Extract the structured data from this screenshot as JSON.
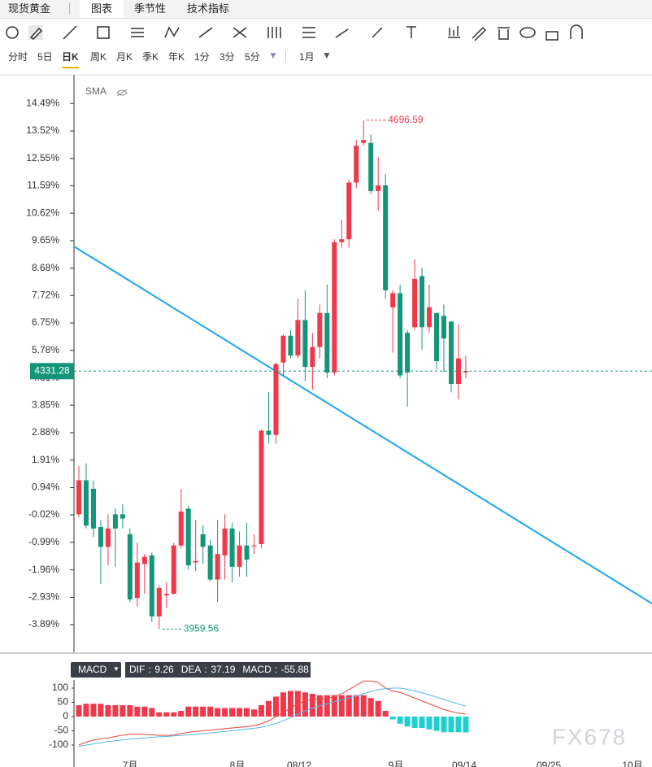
{
  "header": {
    "tabs": [
      "现货黄金",
      "图表",
      "季节性",
      "技术指标"
    ]
  },
  "periods": [
    "分时",
    "5日",
    "日K",
    "周K",
    "月K",
    "季K",
    "年K",
    "1分",
    "3分",
    "5分",
    "1月"
  ],
  "chart_data": {
    "type": "candlestick",
    "indicator": "SMA",
    "up_color": "#f0384a",
    "down_color": "#149579",
    "open": [
      0.0,
      1.2,
      0.9,
      -0.45,
      -1.15,
      0.0,
      0.0,
      -0.7,
      -2.95,
      -1.75,
      -1.45,
      -3.6,
      -2.85,
      -2.8,
      -1.1,
      0.2,
      -1.7,
      -0.7,
      -1.1,
      -2.3,
      -1.45,
      -0.5,
      -1.85,
      -1.1,
      -1.1,
      -1.05,
      2.95,
      2.8,
      5.35,
      6.3,
      5.6,
      6.85,
      5.2,
      5.9,
      7.1,
      5.0,
      9.6,
      9.7,
      11.7,
      13.1,
      13.1,
      11.4,
      11.6,
      7.3,
      7.8,
      6.4,
      6.6,
      8.4,
      6.6,
      7.1,
      7.0,
      6.8,
      4.6,
      5.0
    ],
    "close": [
      1.2,
      -0.4,
      -0.5,
      -1.15,
      -0.5,
      -0.5,
      -0.15,
      -3.0,
      -1.7,
      -1.5,
      -3.6,
      -2.6,
      -2.8,
      -1.1,
      0.1,
      -1.8,
      -1.65,
      -1.15,
      -2.3,
      -1.4,
      -0.5,
      -1.85,
      -1.1,
      -1.6,
      -1.1,
      2.95,
      2.8,
      5.3,
      6.3,
      5.6,
      6.85,
      5.2,
      5.9,
      7.1,
      5.0,
      9.6,
      9.7,
      11.7,
      13.0,
      13.2,
      11.4,
      11.6,
      7.9,
      7.8,
      4.9,
      5.0,
      8.3,
      6.6,
      7.3,
      5.4,
      6.2,
      4.6,
      5.5,
      5.05
    ],
    "high": [
      1.7,
      1.8,
      1.2,
      -0.2,
      0.0,
      0.2,
      0.35,
      -0.5,
      -1.0,
      -1.4,
      -1.35,
      -2.5,
      -2.4,
      -1.0,
      0.9,
      0.3,
      -0.2,
      -0.4,
      -0.9,
      -0.2,
      0.0,
      -0.3,
      -0.6,
      -0.3,
      -0.7,
      3.0,
      4.3,
      5.35,
      6.35,
      6.5,
      7.6,
      7.9,
      6.4,
      7.4,
      8.1,
      9.7,
      10.4,
      11.8,
      13.2,
      13.9,
      13.4,
      12.6,
      12.0,
      7.9,
      8.1,
      6.5,
      9.0,
      8.7,
      8.1,
      7.1,
      7.4,
      6.8,
      6.7,
      5.6
    ],
    "low": [
      -0.1,
      -0.5,
      -0.8,
      -2.45,
      -1.8,
      -1.85,
      -0.5,
      -3.1,
      -3.25,
      -2.8,
      -3.8,
      -4.05,
      -3.3,
      -2.85,
      -1.2,
      -1.95,
      -2.0,
      -1.75,
      -2.35,
      -3.1,
      -2.3,
      -2.4,
      -2.2,
      -2.2,
      -1.4,
      -1.2,
      2.5,
      2.5,
      4.85,
      5.5,
      5.5,
      4.7,
      4.4,
      5.5,
      4.8,
      4.9,
      9.4,
      9.4,
      11.5,
      13.0,
      11.3,
      10.7,
      7.6,
      5.7,
      4.8,
      3.8,
      6.5,
      5.8,
      6.4,
      5.1,
      5.0,
      4.3,
      4.05,
      4.8
    ],
    "ylim": [
      -4.81,
      15.5
    ],
    "yticks": [
      {
        "value": 14.49,
        "label": "14.49%"
      },
      {
        "value": 13.52,
        "label": "13.52%"
      },
      {
        "value": 12.55,
        "label": "12.55%"
      },
      {
        "value": 11.59,
        "label": "11.59%"
      },
      {
        "value": 10.62,
        "label": "10.62%"
      },
      {
        "value": 9.65,
        "label": "9.65%"
      },
      {
        "value": 8.68,
        "label": "8.68%"
      },
      {
        "value": 7.72,
        "label": "7.72%"
      },
      {
        "value": 6.75,
        "label": "6.75%"
      },
      {
        "value": 5.78,
        "label": "5.78%"
      },
      {
        "value": 4.81,
        "label": "4.81%"
      },
      {
        "value": 3.85,
        "label": "3.85%"
      },
      {
        "value": 2.88,
        "label": "2.88%"
      },
      {
        "value": 1.91,
        "label": "1.91%"
      },
      {
        "value": 0.94,
        "label": "0.94%"
      },
      {
        "value": -0.02,
        "label": "-0.02%"
      },
      {
        "value": -0.99,
        "label": "-0.99%"
      },
      {
        "value": -1.96,
        "label": "-1.96%"
      },
      {
        "value": -2.93,
        "label": "-2.93%"
      },
      {
        "value": -3.89,
        "label": "-3.89%"
      }
    ],
    "high_price": 4696.59,
    "low_price": 3959.56,
    "last_price": 4331.28,
    "x_labels": [
      "7月",
      "8月",
      "08/12",
      "9月",
      "09/14",
      "09/25",
      "10月"
    ],
    "watermark": "FX678"
  },
  "macd_chart": {
    "type": "macd",
    "name": "MACD",
    "series": [
      {
        "name": "DIF",
        "color": "#e8453c",
        "values": [
          -100,
          -90,
          -82,
          -78,
          -75,
          -70,
          -65,
          -62,
          -62,
          -63,
          -64,
          -66,
          -66,
          -65,
          -60,
          -55,
          -52,
          -50,
          -48,
          -45,
          -42,
          -40,
          -38,
          -35,
          -32,
          -25,
          -15,
          0,
          15,
          30,
          45,
          55,
          60,
          62,
          65,
          70,
          80,
          95,
          110,
          125,
          125,
          120,
          100,
          90,
          85,
          75,
          65,
          55,
          45,
          35,
          25,
          18,
          12,
          9.26
        ]
      },
      {
        "name": "DEA",
        "color": "#4fb8e6",
        "values": [
          -105,
          -100,
          -96,
          -92,
          -88,
          -85,
          -82,
          -79,
          -77,
          -75,
          -73,
          -71,
          -70,
          -68,
          -66,
          -64,
          -62,
          -60,
          -58,
          -55,
          -52,
          -50,
          -47,
          -44,
          -41,
          -38,
          -32,
          -24,
          -14,
          -4,
          8,
          20,
          30,
          38,
          45,
          52,
          58,
          65,
          72,
          80,
          88,
          95,
          98,
          100,
          100,
          96,
          90,
          84,
          76,
          68,
          60,
          52,
          44,
          37.19
        ]
      },
      {
        "name": "MACD",
        "color": "#f0384a",
        "neg_color": "#1ecfcf",
        "values": [
          40,
          45,
          45,
          45,
          40,
          40,
          40,
          40,
          35,
          35,
          30,
          15,
          15,
          15,
          20,
          35,
          35,
          35,
          35,
          30,
          30,
          30,
          30,
          30,
          25,
          40,
          55,
          70,
          85,
          90,
          90,
          85,
          80,
          75,
          75,
          75,
          75,
          75,
          75,
          75,
          65,
          55,
          20,
          -10,
          -25,
          -35,
          -40,
          -40,
          -45,
          -50,
          -55,
          -55,
          -55,
          -55.88
        ]
      }
    ],
    "ylim": [
      -140,
      128.6
    ],
    "yticks": [
      100,
      50,
      0,
      -50,
      -100
    ]
  }
}
